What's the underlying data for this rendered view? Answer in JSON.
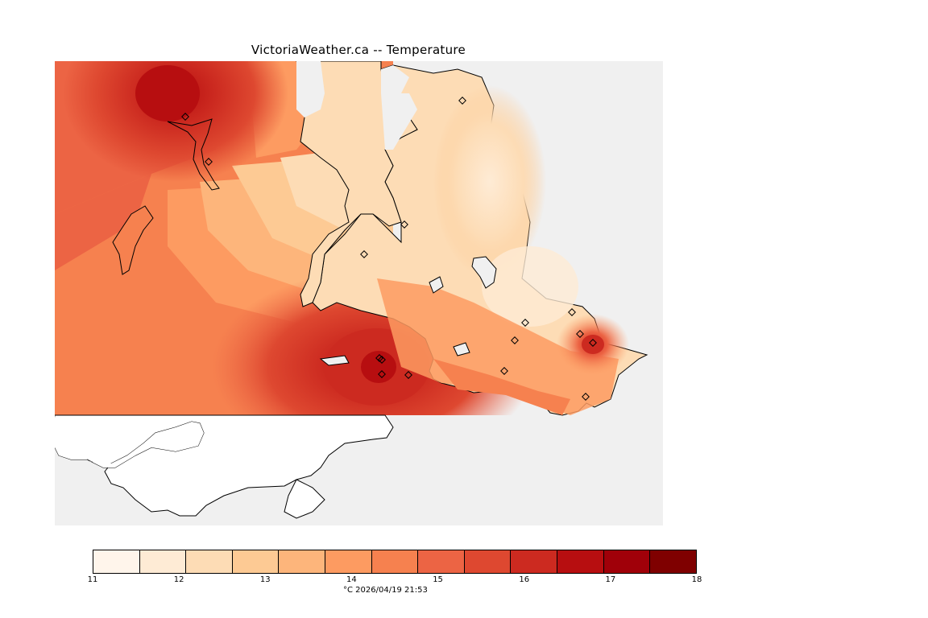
{
  "title": "VictoriaWeather.ca -- Temperature",
  "legend": {
    "unit": "°C",
    "timestamp": "2026/04/19 21:53",
    "tick_labels": [
      "11",
      "12",
      "13",
      "14",
      "15",
      "16",
      "17",
      "18"
    ],
    "colors": [
      "#fff5eb",
      "#feebd5",
      "#fddcb5",
      "#fdca94",
      "#fdb57b",
      "#fd9b61",
      "#f6814f",
      "#ec6444",
      "#de4830",
      "#cc2a20",
      "#b70e10",
      "#a00009",
      "#7f0000"
    ]
  },
  "map": {
    "background_color": "#f0f0f0",
    "stations_label": "weather stations"
  }
}
